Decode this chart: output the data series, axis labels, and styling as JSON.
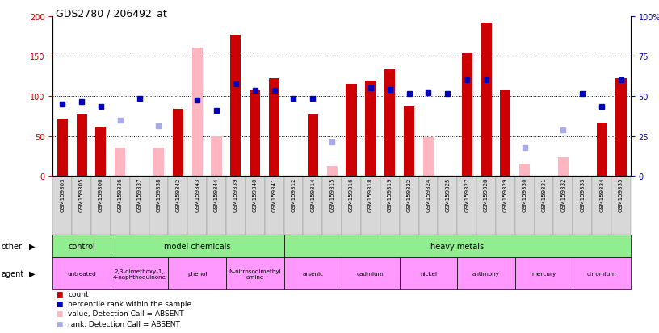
{
  "title": "GDS2780 / 206492_at",
  "samples": [
    "GSM159303",
    "GSM159305",
    "GSM159306",
    "GSM159336",
    "GSM159337",
    "GSM159338",
    "GSM159342",
    "GSM159343",
    "GSM159344",
    "GSM159339",
    "GSM159340",
    "GSM159341",
    "GSM159312",
    "GSM159314",
    "GSM159315",
    "GSM159316",
    "GSM159318",
    "GSM159319",
    "GSM159322",
    "GSM159324",
    "GSM159325",
    "GSM159327",
    "GSM159328",
    "GSM159329",
    "GSM159330",
    "GSM159331",
    "GSM159332",
    "GSM159333",
    "GSM159334",
    "GSM159335"
  ],
  "red_values": [
    72,
    77,
    62,
    null,
    null,
    null,
    84,
    null,
    null,
    177,
    107,
    122,
    null,
    77,
    null,
    115,
    119,
    133,
    87,
    null,
    null,
    153,
    192,
    107,
    null,
    null,
    null,
    null,
    67,
    122
  ],
  "pink_values": [
    null,
    null,
    null,
    36,
    null,
    36,
    null,
    160,
    50,
    null,
    null,
    null,
    null,
    null,
    12,
    null,
    null,
    null,
    null,
    49,
    null,
    null,
    null,
    null,
    16,
    null,
    24,
    null,
    null,
    null
  ],
  "blue_values": [
    90,
    93,
    87,
    null,
    97,
    null,
    null,
    95,
    82,
    115,
    107,
    107,
    97,
    97,
    null,
    null,
    110,
    108,
    103,
    104,
    103,
    120,
    120,
    null,
    null,
    null,
    null,
    103,
    87,
    120
  ],
  "lightblue_values": [
    null,
    null,
    null,
    70,
    null,
    63,
    null,
    null,
    null,
    null,
    null,
    null,
    null,
    null,
    43,
    null,
    null,
    null,
    null,
    null,
    null,
    null,
    null,
    null,
    36,
    null,
    58,
    null,
    null,
    null
  ],
  "other_groups": [
    {
      "label": "control",
      "start": 0,
      "end": 3
    },
    {
      "label": "model chemicals",
      "start": 3,
      "end": 12
    },
    {
      "label": "heavy metals",
      "start": 12,
      "end": 30
    }
  ],
  "agent_groups": [
    {
      "label": "untreated",
      "start": 0,
      "end": 3
    },
    {
      "label": "2,3-dimethoxy-1,\n4-naphthoquinone",
      "start": 3,
      "end": 6
    },
    {
      "label": "phenol",
      "start": 6,
      "end": 9
    },
    {
      "label": "N-nitrosodimethyl\namine",
      "start": 9,
      "end": 12
    },
    {
      "label": "arsenic",
      "start": 12,
      "end": 15
    },
    {
      "label": "cadmium",
      "start": 15,
      "end": 18
    },
    {
      "label": "nickel",
      "start": 18,
      "end": 21
    },
    {
      "label": "antimony",
      "start": 21,
      "end": 24
    },
    {
      "label": "mercury",
      "start": 24,
      "end": 27
    },
    {
      "label": "chromium",
      "start": 27,
      "end": 30
    }
  ],
  "red_color": "#CC0000",
  "pink_color": "#FFB6C1",
  "blue_color": "#0000BB",
  "lightblue_color": "#AAAAEE",
  "green_color": "#90EE90",
  "magenta_color": "#FF99FF",
  "yticks_left": [
    0,
    50,
    100,
    150,
    200
  ],
  "ytick_labels_right": [
    "0",
    "25",
    "50",
    "75",
    "100%"
  ],
  "legend_items": [
    {
      "color": "#CC0000",
      "label": "count"
    },
    {
      "color": "#0000BB",
      "label": "percentile rank within the sample"
    },
    {
      "color": "#FFB6C1",
      "label": "value, Detection Call = ABSENT"
    },
    {
      "color": "#AAAAEE",
      "label": "rank, Detection Call = ABSENT"
    }
  ]
}
